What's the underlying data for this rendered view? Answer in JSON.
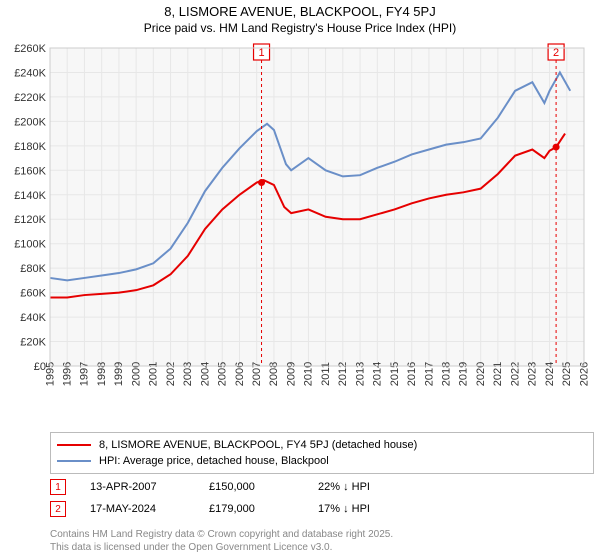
{
  "title_line1": "8, LISMORE AVENUE, BLACKPOOL, FY4 5PJ",
  "title_line2": "Price paid vs. HM Land Registry's House Price Index (HPI)",
  "chart": {
    "type": "line",
    "background_color": "#f7f7f7",
    "grid_color": "#e7e7e7",
    "x": {
      "min": 1995,
      "max": 2026,
      "ticks": [
        1995,
        1996,
        1997,
        1998,
        1999,
        2000,
        2001,
        2002,
        2003,
        2004,
        2005,
        2006,
        2007,
        2008,
        2009,
        2010,
        2011,
        2012,
        2013,
        2014,
        2015,
        2016,
        2017,
        2018,
        2019,
        2020,
        2021,
        2022,
        2023,
        2024,
        2025,
        2026
      ],
      "tick_fontsize": 11,
      "rotate": -90
    },
    "y": {
      "min": 0,
      "max": 260000,
      "step": 20000,
      "tick_format": "£{k}K",
      "labels": [
        "£0",
        "£20K",
        "£40K",
        "£60K",
        "£80K",
        "£100K",
        "£120K",
        "£140K",
        "£160K",
        "£180K",
        "£200K",
        "£220K",
        "£240K",
        "£260K"
      ],
      "tick_fontsize": 11
    },
    "series": [
      {
        "name": "property",
        "label": "8, LISMORE AVENUE, BLACKPOOL, FY4 5PJ (detached house)",
        "color": "#e60000",
        "line_width": 2,
        "points": [
          [
            1995,
            56000
          ],
          [
            1996,
            56000
          ],
          [
            1997,
            58000
          ],
          [
            1998,
            59000
          ],
          [
            1999,
            60000
          ],
          [
            2000,
            62000
          ],
          [
            2001,
            66000
          ],
          [
            2002,
            75000
          ],
          [
            2003,
            90000
          ],
          [
            2004,
            112000
          ],
          [
            2005,
            128000
          ],
          [
            2006,
            140000
          ],
          [
            2007,
            150000
          ],
          [
            2007.4,
            152000
          ],
          [
            2008,
            148000
          ],
          [
            2008.6,
            130000
          ],
          [
            2009,
            125000
          ],
          [
            2010,
            128000
          ],
          [
            2011,
            122000
          ],
          [
            2012,
            120000
          ],
          [
            2013,
            120000
          ],
          [
            2014,
            124000
          ],
          [
            2015,
            128000
          ],
          [
            2016,
            133000
          ],
          [
            2017,
            137000
          ],
          [
            2018,
            140000
          ],
          [
            2019,
            142000
          ],
          [
            2020,
            145000
          ],
          [
            2021,
            157000
          ],
          [
            2022,
            172000
          ],
          [
            2023,
            177000
          ],
          [
            2023.7,
            170000
          ],
          [
            2024,
            176000
          ],
          [
            2024.38,
            179000
          ],
          [
            2024.9,
            190000
          ]
        ]
      },
      {
        "name": "hpi",
        "label": "HPI: Average price, detached house, Blackpool",
        "color": "#6a8fc8",
        "line_width": 2,
        "points": [
          [
            1995,
            72000
          ],
          [
            1996,
            70000
          ],
          [
            1997,
            72000
          ],
          [
            1998,
            74000
          ],
          [
            1999,
            76000
          ],
          [
            2000,
            79000
          ],
          [
            2001,
            84000
          ],
          [
            2002,
            96000
          ],
          [
            2003,
            117000
          ],
          [
            2004,
            143000
          ],
          [
            2005,
            162000
          ],
          [
            2006,
            178000
          ],
          [
            2007,
            192000
          ],
          [
            2007.6,
            198000
          ],
          [
            2008,
            193000
          ],
          [
            2008.7,
            165000
          ],
          [
            2009,
            160000
          ],
          [
            2010,
            170000
          ],
          [
            2011,
            160000
          ],
          [
            2012,
            155000
          ],
          [
            2013,
            156000
          ],
          [
            2014,
            162000
          ],
          [
            2015,
            167000
          ],
          [
            2016,
            173000
          ],
          [
            2017,
            177000
          ],
          [
            2018,
            181000
          ],
          [
            2019,
            183000
          ],
          [
            2020,
            186000
          ],
          [
            2021,
            203000
          ],
          [
            2022,
            225000
          ],
          [
            2023,
            232000
          ],
          [
            2023.7,
            215000
          ],
          [
            2024,
            225000
          ],
          [
            2024.6,
            240000
          ],
          [
            2025.2,
            225000
          ]
        ]
      }
    ],
    "markers": [
      {
        "num": "1",
        "x": 2007.28,
        "top": true
      },
      {
        "num": "2",
        "x": 2024.38,
        "top": true
      }
    ],
    "marker_dot_y": {
      "1": 150000,
      "2": 179000
    },
    "marker_color": "#e60000"
  },
  "legend": {
    "items": [
      {
        "color": "#e60000",
        "label": "8, LISMORE AVENUE, BLACKPOOL, FY4 5PJ (detached house)"
      },
      {
        "color": "#6a8fc8",
        "label": "HPI: Average price, detached house, Blackpool"
      }
    ]
  },
  "events": [
    {
      "num": "1",
      "date": "13-APR-2007",
      "price": "£150,000",
      "delta": "22% ↓ HPI"
    },
    {
      "num": "2",
      "date": "17-MAY-2024",
      "price": "£179,000",
      "delta": "17% ↓ HPI"
    }
  ],
  "footer_line1": "Contains HM Land Registry data © Crown copyright and database right 2025.",
  "footer_line2": "This data is licensed under the Open Government Licence v3.0."
}
